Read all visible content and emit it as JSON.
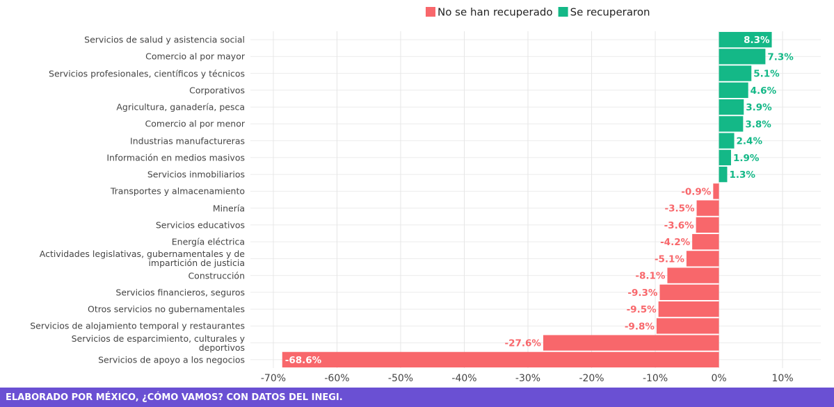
{
  "chart_data": {
    "type": "hbar",
    "categories": [
      "Servicios de salud y asistencia social",
      "Comercio al por mayor",
      "Servicios profesionales, científicos y técnicos",
      "Corporativos",
      "Agricultura, ganadería, pesca",
      "Comercio al por menor",
      "Industrias manufactureras",
      "Información en medios masivos",
      "Servicios inmobiliarios",
      "Transportes y almacenamiento",
      "Minería",
      "Servicios educativos",
      "Energía eléctrica",
      "Actividades legislativas, gubernamentales y de\nimpartición de justicia",
      "Construcción",
      "Servicios financieros, seguros",
      "Otros servicios no gubernamentales",
      "Servicios de alojamiento temporal y restaurantes",
      "Servicios de esparcimiento, culturales y\ndeportivos",
      "Servicios de apoyo a los negocios"
    ],
    "values": [
      8.3,
      7.3,
      5.1,
      4.6,
      3.9,
      3.8,
      2.4,
      1.9,
      1.3,
      -0.9,
      -3.5,
      -3.6,
      -4.2,
      -5.1,
      -8.1,
      -9.3,
      -9.5,
      -9.8,
      -27.6,
      -68.6
    ],
    "value_labels": [
      "8.3%",
      "7.3%",
      "5.1%",
      "4.6%",
      "3.9%",
      "3.8%",
      "2.4%",
      "1.9%",
      "1.3%",
      "-0.9%",
      "-3.5%",
      "-3.6%",
      "-4.2%",
      "-5.1%",
      "-8.1%",
      "-9.3%",
      "-9.5%",
      "-9.8%",
      "-27.6%",
      "-68.6%"
    ],
    "legend": [
      {
        "name": "No se han recuperado",
        "color": "#f8676b"
      },
      {
        "name": "Se recuperaron",
        "color": "#14b887"
      }
    ],
    "xlim": [
      -73.6,
      16
    ],
    "xticks": [
      {
        "value": -70,
        "label": "-70%"
      },
      {
        "value": -60,
        "label": "-60%"
      },
      {
        "value": -50,
        "label": "-50%"
      },
      {
        "value": -40,
        "label": "-40%"
      },
      {
        "value": -30,
        "label": "-30%"
      },
      {
        "value": -20,
        "label": "-20%"
      },
      {
        "value": -10,
        "label": "-10%"
      },
      {
        "value": 0,
        "label": "0%"
      },
      {
        "value": 10,
        "label": "10%"
      }
    ],
    "grid": true
  },
  "footer": "ELABORADO POR MÉXICO, ¿CÓMO VAMOS? CON DATOS DEL INEGI."
}
